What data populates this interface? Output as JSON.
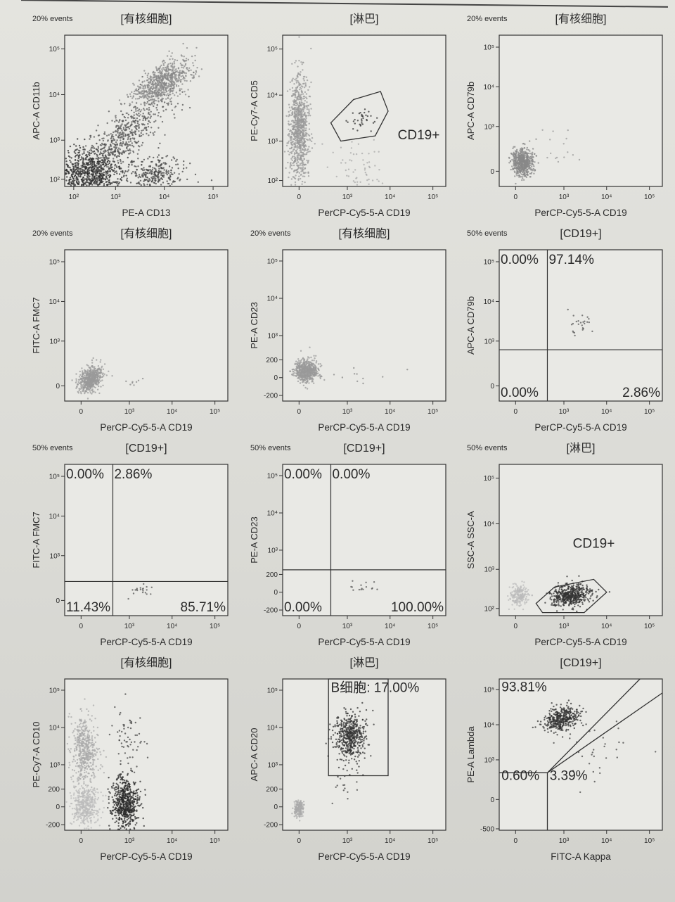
{
  "chart_data": [
    {
      "type": "scatter",
      "events": "20% events",
      "gate": "[有核细胞]",
      "xlabel": "PE-A CD13",
      "ylabel": "APC-A CD11b",
      "xticks": [
        [
          100,
          "10²"
        ],
        [
          1000,
          "10³"
        ],
        [
          10000,
          "10⁴"
        ],
        [
          100000,
          "10⁵"
        ]
      ],
      "yticks": [
        [
          100,
          "10²"
        ],
        [
          1000,
          "10³"
        ],
        [
          10000,
          "10⁴"
        ],
        [
          100000,
          "10⁵"
        ]
      ],
      "xlim": [
        30,
        200000
      ],
      "ylim": [
        40,
        200000
      ],
      "populations": [
        {
          "center": [
            250,
            130
          ],
          "spread": [
            0.35,
            0.3
          ],
          "rho": 0,
          "n": 900,
          "color": "#2a2a2a"
        },
        {
          "center": [
            1500,
            1200
          ],
          "spread": [
            0.5,
            0.5
          ],
          "rho": 0.8,
          "n": 600,
          "color": "#555555"
        },
        {
          "center": [
            9000,
            18000
          ],
          "spread": [
            0.3,
            0.25
          ],
          "rho": 0.6,
          "n": 700,
          "color": "#888888"
        },
        {
          "center": [
            6000,
            150
          ],
          "spread": [
            0.35,
            0.2
          ],
          "rho": 0,
          "n": 300,
          "color": "#444444"
        }
      ]
    },
    {
      "type": "scatter",
      "events": "",
      "gate": "[淋巴]",
      "xlabel": "PerCP-Cy5-5-A CD19",
      "ylabel": "PE-Cy7-A CD5",
      "xticks": [
        [
          0,
          "0"
        ],
        [
          1000,
          "10³"
        ],
        [
          10000,
          "10⁴"
        ],
        [
          100000,
          "10⁵"
        ]
      ],
      "yticks": [
        [
          100,
          "10²"
        ],
        [
          1000,
          "10³"
        ],
        [
          10000,
          "10⁴"
        ],
        [
          100000,
          "10⁵"
        ]
      ],
      "xlim": [
        -150,
        200000
      ],
      "ylim": [
        50,
        200000
      ],
      "populations": [
        {
          "center": [
            0,
            2000
          ],
          "spread": [
            0.12,
            0.55
          ],
          "rho": 0,
          "n": 900,
          "color": "#999999"
        },
        {
          "center": [
            2500,
            3000
          ],
          "spread": [
            0.18,
            0.12
          ],
          "rho": 0,
          "n": 35,
          "color": "#333333"
        },
        {
          "center": [
            2000,
            200
          ],
          "spread": [
            0.3,
            0.3
          ],
          "rho": 0,
          "n": 60,
          "color": "#aaaaaa"
        }
      ],
      "gates": [
        {
          "shape": "polygon",
          "points": [
            [
              400,
              2500
            ],
            [
              1400,
              8000
            ],
            [
              6000,
              12000
            ],
            [
              9000,
              4500
            ],
            [
              4500,
              1300
            ],
            [
              700,
              1000
            ]
          ]
        }
      ],
      "labels": [
        {
          "text": "CD19+",
          "anchor": [
            14000,
            1100
          ]
        }
      ]
    },
    {
      "type": "scatter",
      "events": "20% events",
      "gate": "[有核细胞]",
      "xlabel": "PerCP-Cy5-5-A CD19",
      "ylabel": "APC-A CD79b",
      "xticks": [
        [
          0,
          "0"
        ],
        [
          1000,
          "10³"
        ],
        [
          10000,
          "10⁴"
        ],
        [
          100000,
          "10⁵"
        ]
      ],
      "yticks": [
        [
          0,
          "0"
        ],
        [
          1000,
          "10³"
        ],
        [
          10000,
          "10⁴"
        ],
        [
          100000,
          "10⁵"
        ]
      ],
      "xlim": [
        -150,
        200000
      ],
      "ylim": [
        -150,
        200000
      ],
      "populations": [
        {
          "center": [
            60,
            80
          ],
          "spread": [
            0.12,
            0.17
          ],
          "rho": 0,
          "n": 600,
          "color": "#888888"
        },
        {
          "center": [
            700,
            300
          ],
          "spread": [
            0.3,
            0.3
          ],
          "rho": 0,
          "n": 15,
          "color": "#999999"
        }
      ]
    },
    {
      "type": "scatter",
      "events": "20% events",
      "gate": "[有核细胞]",
      "xlabel": "PerCP-Cy5-5-A CD19",
      "ylabel": "FITC-A FMC7",
      "xticks": [
        [
          0,
          "0"
        ],
        [
          1000,
          "10³"
        ],
        [
          10000,
          "10⁴"
        ],
        [
          100000,
          "10⁵"
        ]
      ],
      "yticks": [
        [
          0,
          "0"
        ],
        [
          1000,
          "10³"
        ],
        [
          10000,
          "10⁴"
        ],
        [
          100000,
          "10⁵"
        ]
      ],
      "xlim": [
        -150,
        200000
      ],
      "ylim": [
        -150,
        200000
      ],
      "populations": [
        {
          "center": [
            80,
            60
          ],
          "spread": [
            0.13,
            0.15
          ],
          "rho": 0.3,
          "n": 600,
          "color": "#999999"
        },
        {
          "center": [
            1500,
            40
          ],
          "spread": [
            0.2,
            0.08
          ],
          "rho": 0,
          "n": 8,
          "color": "#888888"
        }
      ]
    },
    {
      "type": "scatter",
      "events": "20% events",
      "gate": "[有核细胞]",
      "xlabel": "PerCP-Cy5-5-A CD19",
      "ylabel": "PE-A CD23",
      "xticks": [
        [
          0,
          "0"
        ],
        [
          1000,
          "10³"
        ],
        [
          10000,
          "10⁴"
        ],
        [
          100000,
          "10⁵"
        ]
      ],
      "yticks": [
        [
          -200,
          "-200"
        ],
        [
          0,
          "0"
        ],
        [
          200,
          "200"
        ],
        [
          1000,
          "10³"
        ],
        [
          10000,
          "10⁴"
        ],
        [
          100000,
          "10⁵"
        ]
      ],
      "xlim": [
        -150,
        200000
      ],
      "ylim": [
        -300,
        200000
      ],
      "populations": [
        {
          "center": [
            60,
            60
          ],
          "spread": [
            0.14,
            0.14
          ],
          "rho": 0,
          "n": 600,
          "color": "#999999"
        },
        {
          "center": [
            2500,
            20
          ],
          "spread": [
            0.35,
            0.1
          ],
          "rho": 0,
          "n": 10,
          "color": "#888888"
        }
      ]
    },
    {
      "type": "scatter",
      "events": "50% events",
      "gate": "[CD19+]",
      "xlabel": "PerCP-Cy5-5-A CD19",
      "ylabel": "APC-A CD79b",
      "xticks": [
        [
          0,
          "0"
        ],
        [
          1000,
          "10³"
        ],
        [
          10000,
          "10⁴"
        ],
        [
          100000,
          "10⁵"
        ]
      ],
      "yticks": [
        [
          0,
          "0"
        ],
        [
          1000,
          "10³"
        ],
        [
          10000,
          "10⁴"
        ],
        [
          100000,
          "10⁵"
        ]
      ],
      "xlim": [
        -150,
        200000
      ],
      "ylim": [
        -150,
        200000
      ],
      "quadrant": [
        400,
        600
      ],
      "quadrant_labels": {
        "ul": "0.00%",
        "ur": "97.14%",
        "ll": "0.00%",
        "lr": "2.86%"
      },
      "populations": [
        {
          "center": [
            2500,
            2500
          ],
          "spread": [
            0.15,
            0.15
          ],
          "rho": 0,
          "n": 25,
          "color": "#555555"
        }
      ]
    },
    {
      "type": "scatter",
      "events": "50% events",
      "gate": "[CD19+]",
      "xlabel": "PerCP-Cy5-5-A CD19",
      "ylabel": "FITC-A FMC7",
      "xticks": [
        [
          0,
          "0"
        ],
        [
          1000,
          "10³"
        ],
        [
          10000,
          "10⁴"
        ],
        [
          100000,
          "10⁵"
        ]
      ],
      "yticks": [
        [
          0,
          "0"
        ],
        [
          1000,
          "10³"
        ],
        [
          10000,
          "10⁴"
        ],
        [
          100000,
          "10⁵"
        ]
      ],
      "xlim": [
        -150,
        200000
      ],
      "ylim": [
        -150,
        200000
      ],
      "quadrant": [
        400,
        200
      ],
      "quadrant_labels": {
        "ul": "0.00%",
        "ur": "2.86%",
        "ll": "11.43%",
        "lr": "85.71%"
      },
      "populations": [
        {
          "center": [
            2000,
            80
          ],
          "spread": [
            0.15,
            0.1
          ],
          "rho": 0,
          "n": 20,
          "color": "#555555"
        }
      ]
    },
    {
      "type": "scatter",
      "events": "50% events",
      "gate": "[CD19+]",
      "xlabel": "PerCP-Cy5-5-A CD19",
      "ylabel": "PE-A CD23",
      "xticks": [
        [
          0,
          "0"
        ],
        [
          1000,
          "10³"
        ],
        [
          10000,
          "10⁴"
        ],
        [
          100000,
          "10⁵"
        ]
      ],
      "yticks": [
        [
          -200,
          "-200"
        ],
        [
          0,
          "0"
        ],
        [
          200,
          "200"
        ],
        [
          1000,
          "10³"
        ],
        [
          10000,
          "10⁴"
        ],
        [
          100000,
          "10⁵"
        ]
      ],
      "xlim": [
        -150,
        200000
      ],
      "ylim": [
        -300,
        200000
      ],
      "quadrant": [
        400,
        280
      ],
      "quadrant_labels": {
        "ul": "0.00%",
        "ur": "0.00%",
        "ll": "0.00%",
        "lr": "100.00%"
      },
      "populations": [
        {
          "center": [
            2000,
            50
          ],
          "spread": [
            0.15,
            0.1
          ],
          "rho": 0,
          "n": 15,
          "color": "#555555"
        }
      ]
    },
    {
      "type": "scatter",
      "events": "50% events",
      "gate": "[淋巴]",
      "xlabel": "PerCP-Cy5-5-A CD19",
      "ylabel": "SSC-A SSC-A",
      "xticks": [
        [
          0,
          "0"
        ],
        [
          1000,
          "10³"
        ],
        [
          10000,
          "10⁴"
        ],
        [
          100000,
          "10⁵"
        ]
      ],
      "yticks": [
        [
          100,
          "10²"
        ],
        [
          1000,
          "10³"
        ],
        [
          10000,
          "10⁴"
        ],
        [
          100000,
          "10⁵"
        ]
      ],
      "xlim": [
        -150,
        200000
      ],
      "ylim": [
        40,
        200000
      ],
      "populations": [
        {
          "center": [
            30,
            250
          ],
          "spread": [
            0.1,
            0.12
          ],
          "rho": 0,
          "n": 200,
          "color": "#bbbbbb"
        },
        {
          "center": [
            1500,
            250
          ],
          "spread": [
            0.22,
            0.12
          ],
          "rho": 0.2,
          "n": 500,
          "color": "#333333"
        }
      ],
      "gates": [
        {
          "shape": "polygon",
          "points": [
            [
              200,
              150
            ],
            [
              600,
              400
            ],
            [
              5000,
              600
            ],
            [
              10000,
              300
            ],
            [
              3000,
              65
            ],
            [
              300,
              65
            ]
          ]
        }
      ],
      "labels": [
        {
          "text": "CD19+",
          "anchor": [
            1500,
            3000
          ]
        }
      ]
    },
    {
      "type": "scatter",
      "events": "",
      "gate": "[有核细胞]",
      "xlabel": "PerCP-Cy5-5-A CD19",
      "ylabel": "PE-Cy7-A CD10",
      "xticks": [
        [
          0,
          "0"
        ],
        [
          1000,
          "10³"
        ],
        [
          10000,
          "10⁴"
        ],
        [
          100000,
          "10⁵"
        ]
      ],
      "yticks": [
        [
          -200,
          "-200"
        ],
        [
          0,
          "0"
        ],
        [
          200,
          "200"
        ],
        [
          1000,
          "10³"
        ],
        [
          10000,
          "10⁴"
        ],
        [
          100000,
          "10⁵"
        ]
      ],
      "xlim": [
        -150,
        200000
      ],
      "ylim": [
        -300,
        200000
      ],
      "populations": [
        {
          "center": [
            30,
            2000
          ],
          "spread": [
            0.15,
            0.5
          ],
          "rho": 0,
          "n": 500,
          "color": "#aaaaaa"
        },
        {
          "center": [
            30,
            0
          ],
          "spread": [
            0.15,
            0.3
          ],
          "rho": 0,
          "n": 400,
          "color": "#bbbbbb"
        },
        {
          "center": [
            800,
            30
          ],
          "spread": [
            0.15,
            0.35
          ],
          "rho": 0,
          "n": 600,
          "color": "#2a2a2a"
        },
        {
          "center": [
            1000,
            4000
          ],
          "spread": [
            0.2,
            0.45
          ],
          "rho": 0,
          "n": 60,
          "color": "#444444"
        }
      ]
    },
    {
      "type": "scatter",
      "events": "",
      "gate": "[淋巴]",
      "xlabel": "PerCP-Cy5-5-A CD19",
      "ylabel": "APC-A CD20",
      "xticks": [
        [
          0,
          "0"
        ],
        [
          1000,
          "10³"
        ],
        [
          10000,
          "10⁴"
        ],
        [
          100000,
          "10⁵"
        ]
      ],
      "yticks": [
        [
          -200,
          "-200"
        ],
        [
          0,
          "0"
        ],
        [
          200,
          "200"
        ],
        [
          1000,
          "10³"
        ],
        [
          10000,
          "10⁴"
        ],
        [
          100000,
          "10⁵"
        ]
      ],
      "xlim": [
        -150,
        200000
      ],
      "ylim": [
        -300,
        200000
      ],
      "populations": [
        {
          "center": [
            1200,
            6000
          ],
          "spread": [
            0.18,
            0.3
          ],
          "rho": 0,
          "n": 500,
          "color": "#333333"
        },
        {
          "center": [
            0,
            -20
          ],
          "spread": [
            0.06,
            0.12
          ],
          "rho": 0,
          "n": 150,
          "color": "#aaaaaa"
        },
        {
          "center": [
            1000,
            250
          ],
          "spread": [
            0.2,
            0.2
          ],
          "rho": 0,
          "n": 20,
          "color": "#444444"
        }
      ],
      "gates": [
        {
          "shape": "polygon",
          "points": [
            [
              350,
              500
            ],
            [
              350,
              200000
            ],
            [
              9000,
              200000
            ],
            [
              9000,
              500
            ]
          ]
        }
      ],
      "labels": [
        {
          "text": "B细胞: 17.00%",
          "anchor": [
            370,
            90000
          ]
        }
      ]
    },
    {
      "type": "scatter",
      "events": "",
      "gate": "[CD19+]",
      "xlabel": "FITC-A Kappa",
      "ylabel": "PE-A Lambda",
      "xticks": [
        [
          0,
          "0"
        ],
        [
          1000,
          "10³"
        ],
        [
          10000,
          "10⁴"
        ],
        [
          100000,
          "10⁵"
        ]
      ],
      "yticks": [
        [
          -500,
          "-500"
        ],
        [
          0,
          "0"
        ],
        [
          1000,
          "10³"
        ],
        [
          10000,
          "10⁴"
        ],
        [
          100000,
          "10⁵"
        ]
      ],
      "xlim": [
        -150,
        200000
      ],
      "ylim": [
        -550,
        200000
      ],
      "populations": [
        {
          "center": [
            900,
            15000
          ],
          "spread": [
            0.2,
            0.18
          ],
          "rho": 0.3,
          "n": 400,
          "color": "#333333"
        },
        {
          "center": [
            4000,
            1500
          ],
          "spread": [
            0.45,
            0.5
          ],
          "rho": 0,
          "n": 30,
          "color": "#444444"
        }
      ],
      "gates": [
        {
          "shape": "polyline",
          "points": [
            [
              -150,
              420
            ],
            [
              400,
              420
            ],
            [
              60000,
              200000
            ]
          ]
        },
        {
          "shape": "polyline",
          "points": [
            [
              400,
              420
            ],
            [
              200000,
              80000
            ]
          ]
        },
        {
          "shape": "polyline",
          "points": [
            [
              400,
              420
            ],
            [
              400,
              -550
            ]
          ]
        }
      ],
      "labels": [
        {
          "text": "93.81%",
          "anchor": [
            -140,
            90000
          ]
        },
        {
          "text": "0.60%",
          "anchor": [
            -140,
            250
          ]
        },
        {
          "text": "3.39%",
          "anchor": [
            420,
            250
          ]
        }
      ]
    }
  ]
}
